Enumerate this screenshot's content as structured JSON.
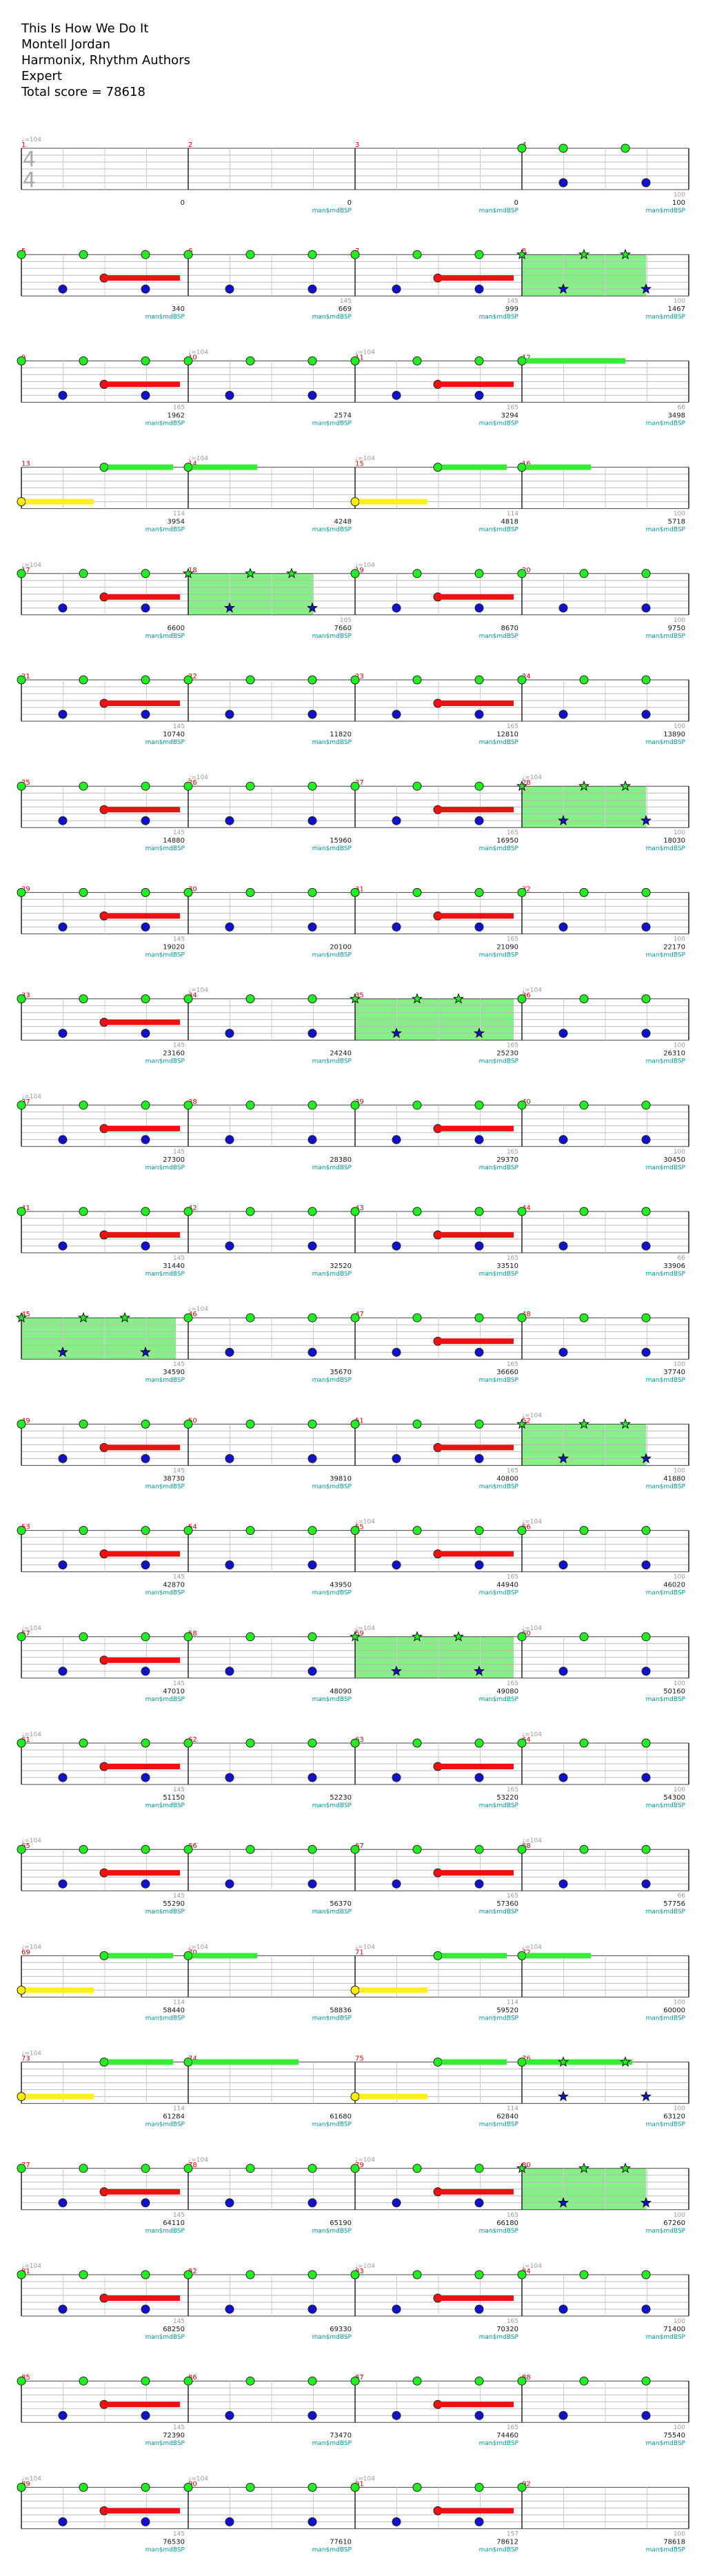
{
  "header": {
    "song_title": "This Is How We Do It",
    "artist": "Montell Jordan",
    "authors": "Harmonix, Rhythm Authors",
    "difficulty": "Expert",
    "total_score_label": "Total score = 78618"
  },
  "time_signature": {
    "top": "4",
    "bottom": "4"
  },
  "tempo_marker": "♩=104",
  "measure_tag": "man$mdBSP",
  "colors": {
    "green_note": "#22ee22",
    "blue_note": "#1111cc",
    "yellow_note": "#ffee00",
    "red_sustain": "#ee1111",
    "green_sustain": "#33ee33",
    "yellow_sustain": "#ffee22",
    "star_power_fill": "#88ee88",
    "measure_number": "#e00000",
    "tag_text": "#009999"
  },
  "rows": [
    {
      "start": 1,
      "scores": [
        "0",
        "0",
        "0",
        "100"
      ],
      "mults": [
        "",
        "",
        "",
        "100"
      ],
      "tempo": [
        true,
        false,
        false,
        false
      ]
    },
    {
      "start": 5,
      "scores": [
        "340",
        "669",
        "999",
        "1467"
      ],
      "mults": [
        "",
        "145",
        "145",
        "100"
      ],
      "tempo": [
        false,
        false,
        false,
        false
      ]
    },
    {
      "start": 9,
      "scores": [
        "1962",
        "2574",
        "3294",
        "3498"
      ],
      "mults": [
        "165",
        "",
        "165",
        "66"
      ],
      "tempo": [
        false,
        true,
        true,
        false
      ]
    },
    {
      "start": 13,
      "scores": [
        "3954",
        "4248",
        "4818",
        "5718"
      ],
      "mults": [
        "114",
        "",
        "114",
        "100"
      ],
      "tempo": [
        false,
        true,
        true,
        false
      ]
    },
    {
      "start": 17,
      "scores": [
        "6600",
        "7660",
        "8670",
        "9750"
      ],
      "mults": [
        "",
        "105",
        "",
        "100"
      ],
      "tempo": [
        true,
        false,
        true,
        false
      ]
    },
    {
      "start": 21,
      "scores": [
        "10740",
        "11820",
        "12810",
        "13890"
      ],
      "mults": [
        "145",
        "",
        "165",
        "100"
      ],
      "tempo": [
        false,
        false,
        false,
        false
      ]
    },
    {
      "start": 25,
      "scores": [
        "14880",
        "15960",
        "16950",
        "18030"
      ],
      "mults": [
        "145",
        "",
        "165",
        "100"
      ],
      "tempo": [
        false,
        true,
        false,
        true
      ]
    },
    {
      "start": 29,
      "scores": [
        "19020",
        "20100",
        "21090",
        "22170"
      ],
      "mults": [
        "145",
        "",
        "165",
        "100"
      ],
      "tempo": [
        false,
        false,
        false,
        false
      ]
    },
    {
      "start": 33,
      "scores": [
        "23160",
        "24240",
        "25230",
        "26310"
      ],
      "mults": [
        "145",
        "",
        "165",
        "100"
      ],
      "tempo": [
        false,
        true,
        false,
        true
      ]
    },
    {
      "start": 37,
      "scores": [
        "27300",
        "28380",
        "29370",
        "30450"
      ],
      "mults": [
        "145",
        "",
        "165",
        "100"
      ],
      "tempo": [
        true,
        false,
        false,
        false
      ]
    },
    {
      "start": 41,
      "scores": [
        "31440",
        "32520",
        "33510",
        "33906"
      ],
      "mults": [
        "145",
        "",
        "165",
        "66"
      ],
      "tempo": [
        false,
        false,
        false,
        false
      ]
    },
    {
      "start": 45,
      "scores": [
        "34590",
        "35670",
        "36660",
        "37740"
      ],
      "mults": [
        "145",
        "",
        "165",
        "100"
      ],
      "tempo": [
        false,
        true,
        false,
        false
      ]
    },
    {
      "start": 49,
      "scores": [
        "38730",
        "39810",
        "40800",
        "41880"
      ],
      "mults": [
        "145",
        "",
        "165",
        "100"
      ],
      "tempo": [
        false,
        false,
        false,
        true
      ]
    },
    {
      "start": 53,
      "scores": [
        "42870",
        "43950",
        "44940",
        "46020"
      ],
      "mults": [
        "145",
        "",
        "165",
        "100"
      ],
      "tempo": [
        false,
        false,
        true,
        true
      ]
    },
    {
      "start": 57,
      "scores": [
        "47010",
        "48090",
        "49080",
        "50160"
      ],
      "mults": [
        "145",
        "",
        "165",
        "100"
      ],
      "tempo": [
        true,
        false,
        true,
        true
      ]
    },
    {
      "start": 61,
      "scores": [
        "51150",
        "52230",
        "53220",
        "54300"
      ],
      "mults": [
        "145",
        "",
        "165",
        "100"
      ],
      "tempo": [
        true,
        false,
        false,
        true
      ]
    },
    {
      "start": 65,
      "scores": [
        "55290",
        "56370",
        "57360",
        "57756"
      ],
      "mults": [
        "145",
        "",
        "165",
        "66"
      ],
      "tempo": [
        true,
        false,
        false,
        true
      ]
    },
    {
      "start": 69,
      "scores": [
        "58440",
        "58836",
        "59520",
        "60000"
      ],
      "mults": [
        "114",
        "",
        "114",
        "100"
      ],
      "tempo": [
        true,
        true,
        true,
        true
      ]
    },
    {
      "start": 73,
      "scores": [
        "61284",
        "61680",
        "62840",
        "63120"
      ],
      "mults": [
        "114",
        "",
        "114",
        "100"
      ],
      "tempo": [
        true,
        false,
        false,
        false
      ]
    },
    {
      "start": 77,
      "scores": [
        "64110",
        "65190",
        "66180",
        "67260"
      ],
      "mults": [
        "145",
        "",
        "165",
        "100"
      ],
      "tempo": [
        false,
        true,
        true,
        false
      ]
    },
    {
      "start": 81,
      "scores": [
        "68250",
        "69330",
        "70320",
        "71400"
      ],
      "mults": [
        "145",
        "",
        "165",
        "100"
      ],
      "tempo": [
        true,
        false,
        true,
        true
      ]
    },
    {
      "start": 85,
      "scores": [
        "72390",
        "73470",
        "74460",
        "75540"
      ],
      "mults": [
        "145",
        "",
        "165",
        "100"
      ],
      "tempo": [
        false,
        false,
        false,
        false
      ]
    },
    {
      "start": 89,
      "scores": [
        "76530",
        "77610",
        "78612",
        "78618"
      ],
      "mults": [
        "145",
        "",
        "157",
        "100"
      ],
      "tempo": [
        true,
        true,
        true,
        false
      ]
    }
  ]
}
